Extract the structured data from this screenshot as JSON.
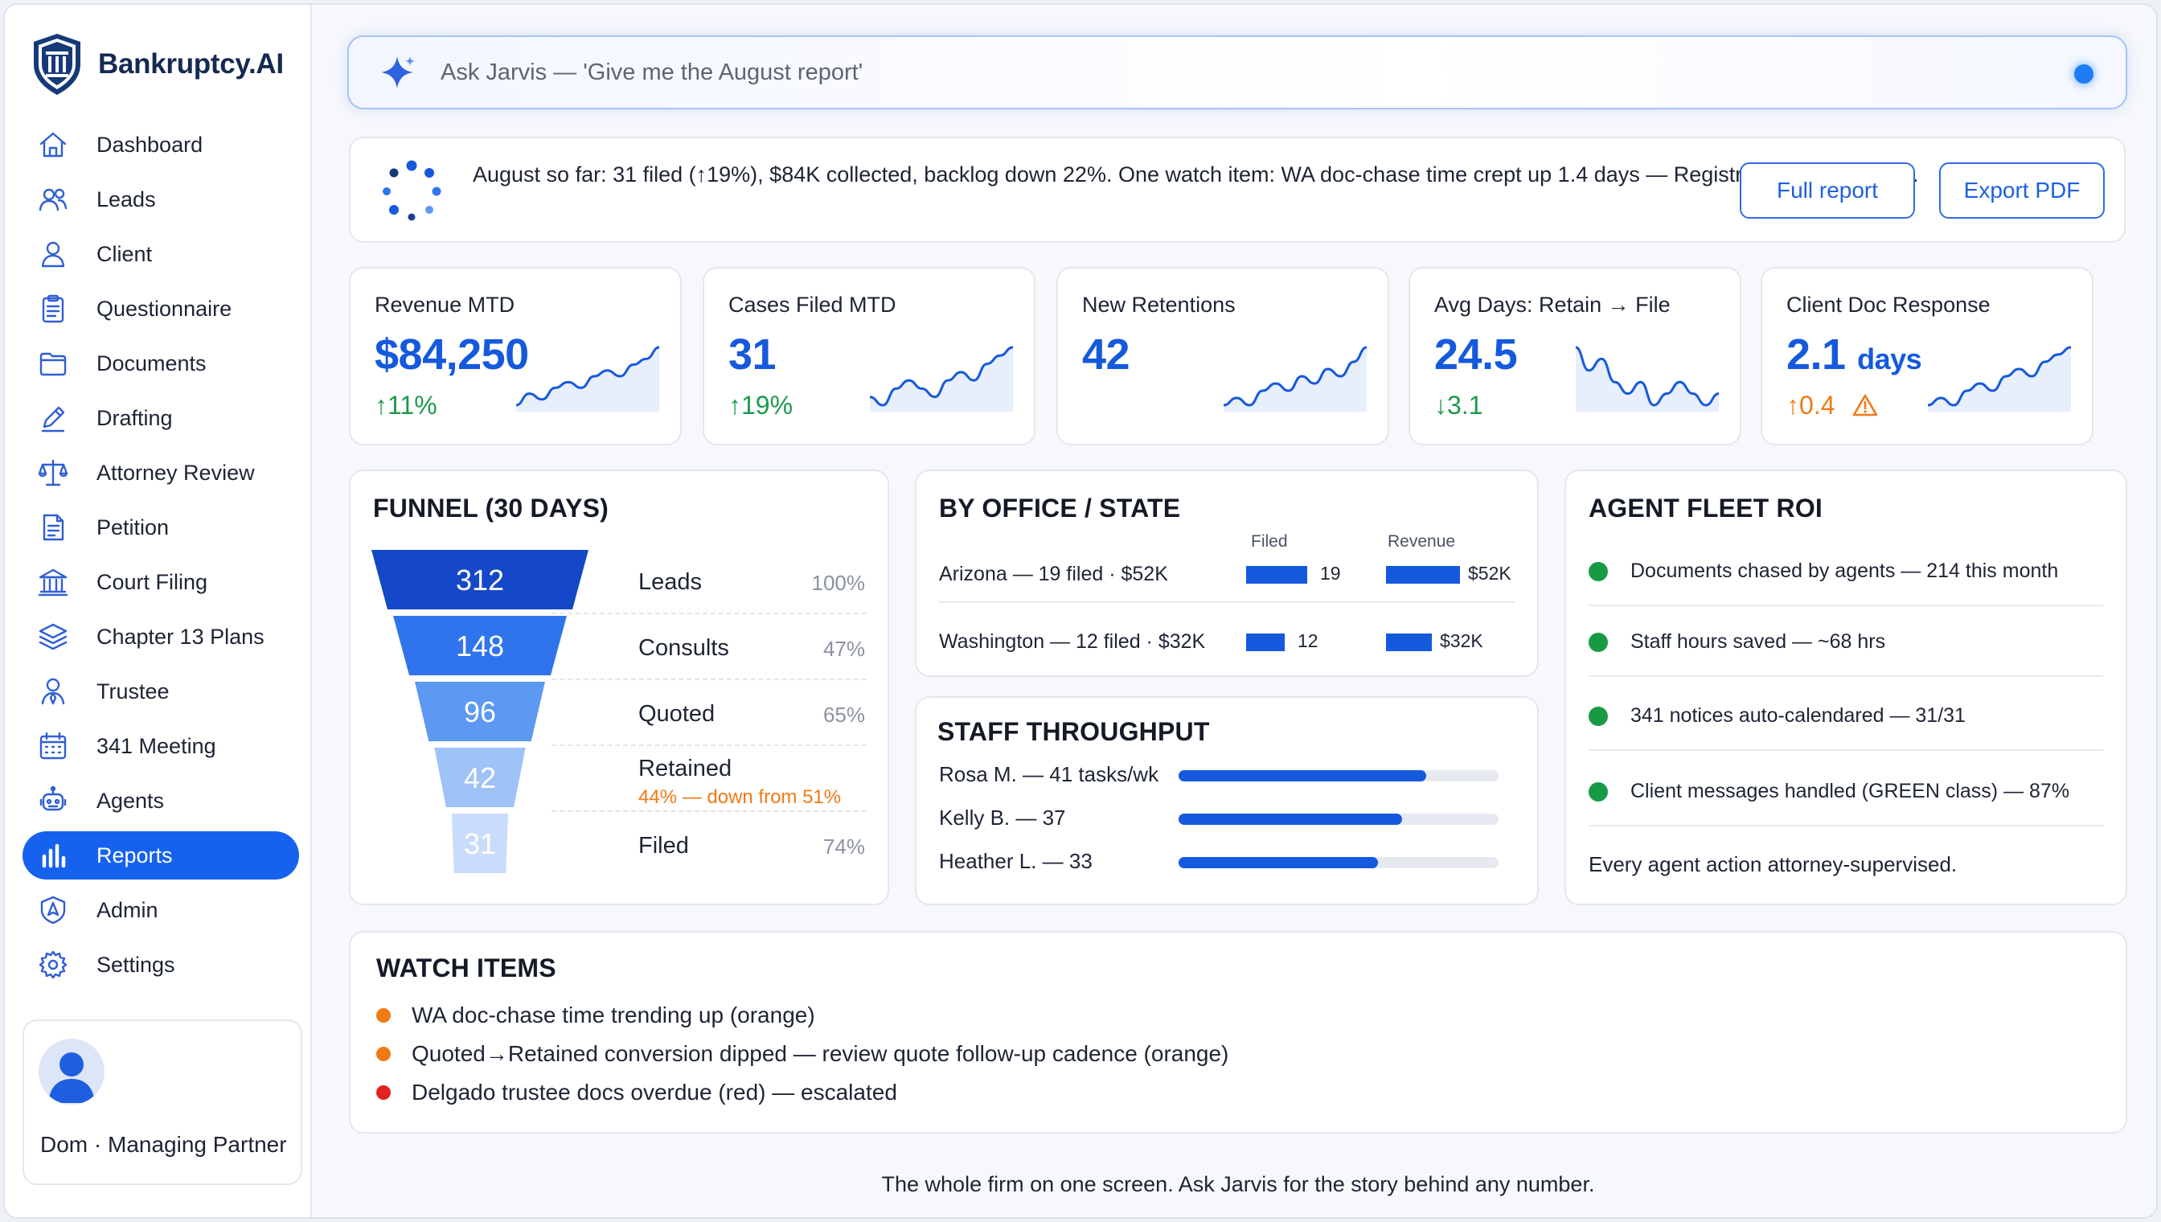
{
  "brand": {
    "name": "Bankruptcy.AI"
  },
  "nav": [
    {
      "label": "Dashboard",
      "icon": "home-icon"
    },
    {
      "label": "Leads",
      "icon": "users-icon"
    },
    {
      "label": "Client",
      "icon": "user-icon"
    },
    {
      "label": "Questionnaire",
      "icon": "clipboard-icon"
    },
    {
      "label": "Documents",
      "icon": "folder-icon"
    },
    {
      "label": "Drafting",
      "icon": "pencil-icon"
    },
    {
      "label": "Attorney Review",
      "icon": "scales-icon"
    },
    {
      "label": "Petition",
      "icon": "document-icon"
    },
    {
      "label": "Court Filing",
      "icon": "courthouse-icon"
    },
    {
      "label": "Chapter 13 Plans",
      "icon": "layers-icon"
    },
    {
      "label": "Trustee",
      "icon": "person-badge-icon"
    },
    {
      "label": "341 Meeting",
      "icon": "calendar-icon"
    },
    {
      "label": "Agents",
      "icon": "robot-icon"
    },
    {
      "label": "Reports",
      "icon": "bar-chart-icon",
      "active": true
    },
    {
      "label": "Admin",
      "icon": "shield-icon"
    },
    {
      "label": "Settings",
      "icon": "gear-icon"
    }
  ],
  "profile": {
    "name": "Dom · Managing Partner"
  },
  "search": {
    "placeholder": "Ask Jarvis — 'Give me the August report'"
  },
  "summary": {
    "text": "August so far: 31 filed (↑19%), $84K collected, backlog down 22%. One watch item: WA doc-chase time crept up 1.4 days — Registrar launch will fix it.",
    "full_report": "Full report",
    "export_pdf": "Export PDF"
  },
  "kpis": [
    {
      "label": "Revenue MTD",
      "value": "$84,250",
      "unit": "",
      "delta": "↑11%",
      "trend": "green",
      "spark": [
        2,
        4,
        3,
        5,
        6,
        5,
        7,
        8,
        7,
        9,
        10,
        12
      ]
    },
    {
      "label": "Cases Filed MTD",
      "value": "31",
      "unit": "",
      "delta": "↑19%",
      "trend": "green",
      "spark": [
        4,
        3,
        5,
        6,
        5,
        4,
        6,
        7,
        6,
        8,
        9,
        10
      ]
    },
    {
      "label": "New Retentions",
      "value": "42",
      "unit": "",
      "delta": "",
      "trend": "green",
      "spark": [
        3,
        4,
        3,
        5,
        6,
        5,
        7,
        6,
        8,
        7,
        9,
        11
      ]
    },
    {
      "label": "Avg Days: Retain → File",
      "value": "24.5",
      "unit": "",
      "delta": "↓3.1",
      "trend": "green",
      "spark": [
        9,
        7,
        8,
        6,
        5,
        6,
        4,
        5,
        6,
        5,
        4,
        5
      ]
    },
    {
      "label": "Client Doc Response",
      "value": "2.1",
      "unit": "days",
      "delta": "↑0.4",
      "trend": "orange",
      "warning": "warning-icon",
      "spark": [
        4,
        5,
        4,
        6,
        7,
        6,
        8,
        9,
        8,
        10,
        11,
        12
      ]
    }
  ],
  "funnel": {
    "title": "FUNNEL (30 DAYS)",
    "stages": [
      {
        "value": "312",
        "label": "Leads",
        "pct": "100%",
        "color": "#1448c8",
        "width_fraction": 1.0
      },
      {
        "value": "148",
        "label": "Consults",
        "pct": "47%",
        "color": "#2f74ec",
        "width_fraction": 0.8
      },
      {
        "value": "96",
        "label": "Quoted",
        "pct": "65%",
        "color": "#5d98f2",
        "width_fraction": 0.6
      },
      {
        "value": "42",
        "label": "Retained",
        "pct": "",
        "sub": "44% — down from 51%",
        "color": "#9fc2f7",
        "width_fraction": 0.42
      },
      {
        "value": "31",
        "label": "Filed",
        "pct": "74%",
        "color": "#c9dcfb",
        "width_fraction": 0.26
      }
    ]
  },
  "office": {
    "title": "BY OFFICE / STATE",
    "col_filed": "Filed",
    "col_revenue": "Revenue",
    "rows": [
      {
        "name": "Arizona — 19 filed · $52K",
        "filed": 19,
        "filed_label": "19",
        "revenue": 52,
        "revenue_label": "$52K"
      },
      {
        "name": "Washington — 12 filed · $32K",
        "filed": 12,
        "filed_label": "12",
        "revenue": 32,
        "revenue_label": "$32K"
      }
    ]
  },
  "staff": {
    "title": "STAFF THROUGHPUT",
    "rows": [
      {
        "name": "Rosa M. — 41 tasks/wk",
        "value": 41
      },
      {
        "name": "Kelly B. — 37",
        "value": 37
      },
      {
        "name": "Heather L. — 33",
        "value": 33
      }
    ],
    "max": 53
  },
  "agents": {
    "title": "AGENT FLEET ROI",
    "items": [
      "Documents chased by agents — 214 this month",
      "Staff hours saved — ~68 hrs",
      "341 notices auto-calendared — 31/31",
      "Client messages handled (GREEN class) — 87%"
    ],
    "footer": "Every agent action attorney-supervised."
  },
  "watch": {
    "title": "WATCH ITEMS",
    "items": [
      {
        "text": "WA doc-chase time trending up (orange)",
        "color": "#f07a16"
      },
      {
        "text": "Quoted→Retained conversion dipped — review quote follow-up cadence (orange)",
        "color": "#f07a16"
      },
      {
        "text": "Delgado trustee docs overdue (red) — escalated",
        "color": "#e32020"
      }
    ]
  },
  "footer": "The whole firm on one screen. Ask Jarvis for the story behind any number."
}
